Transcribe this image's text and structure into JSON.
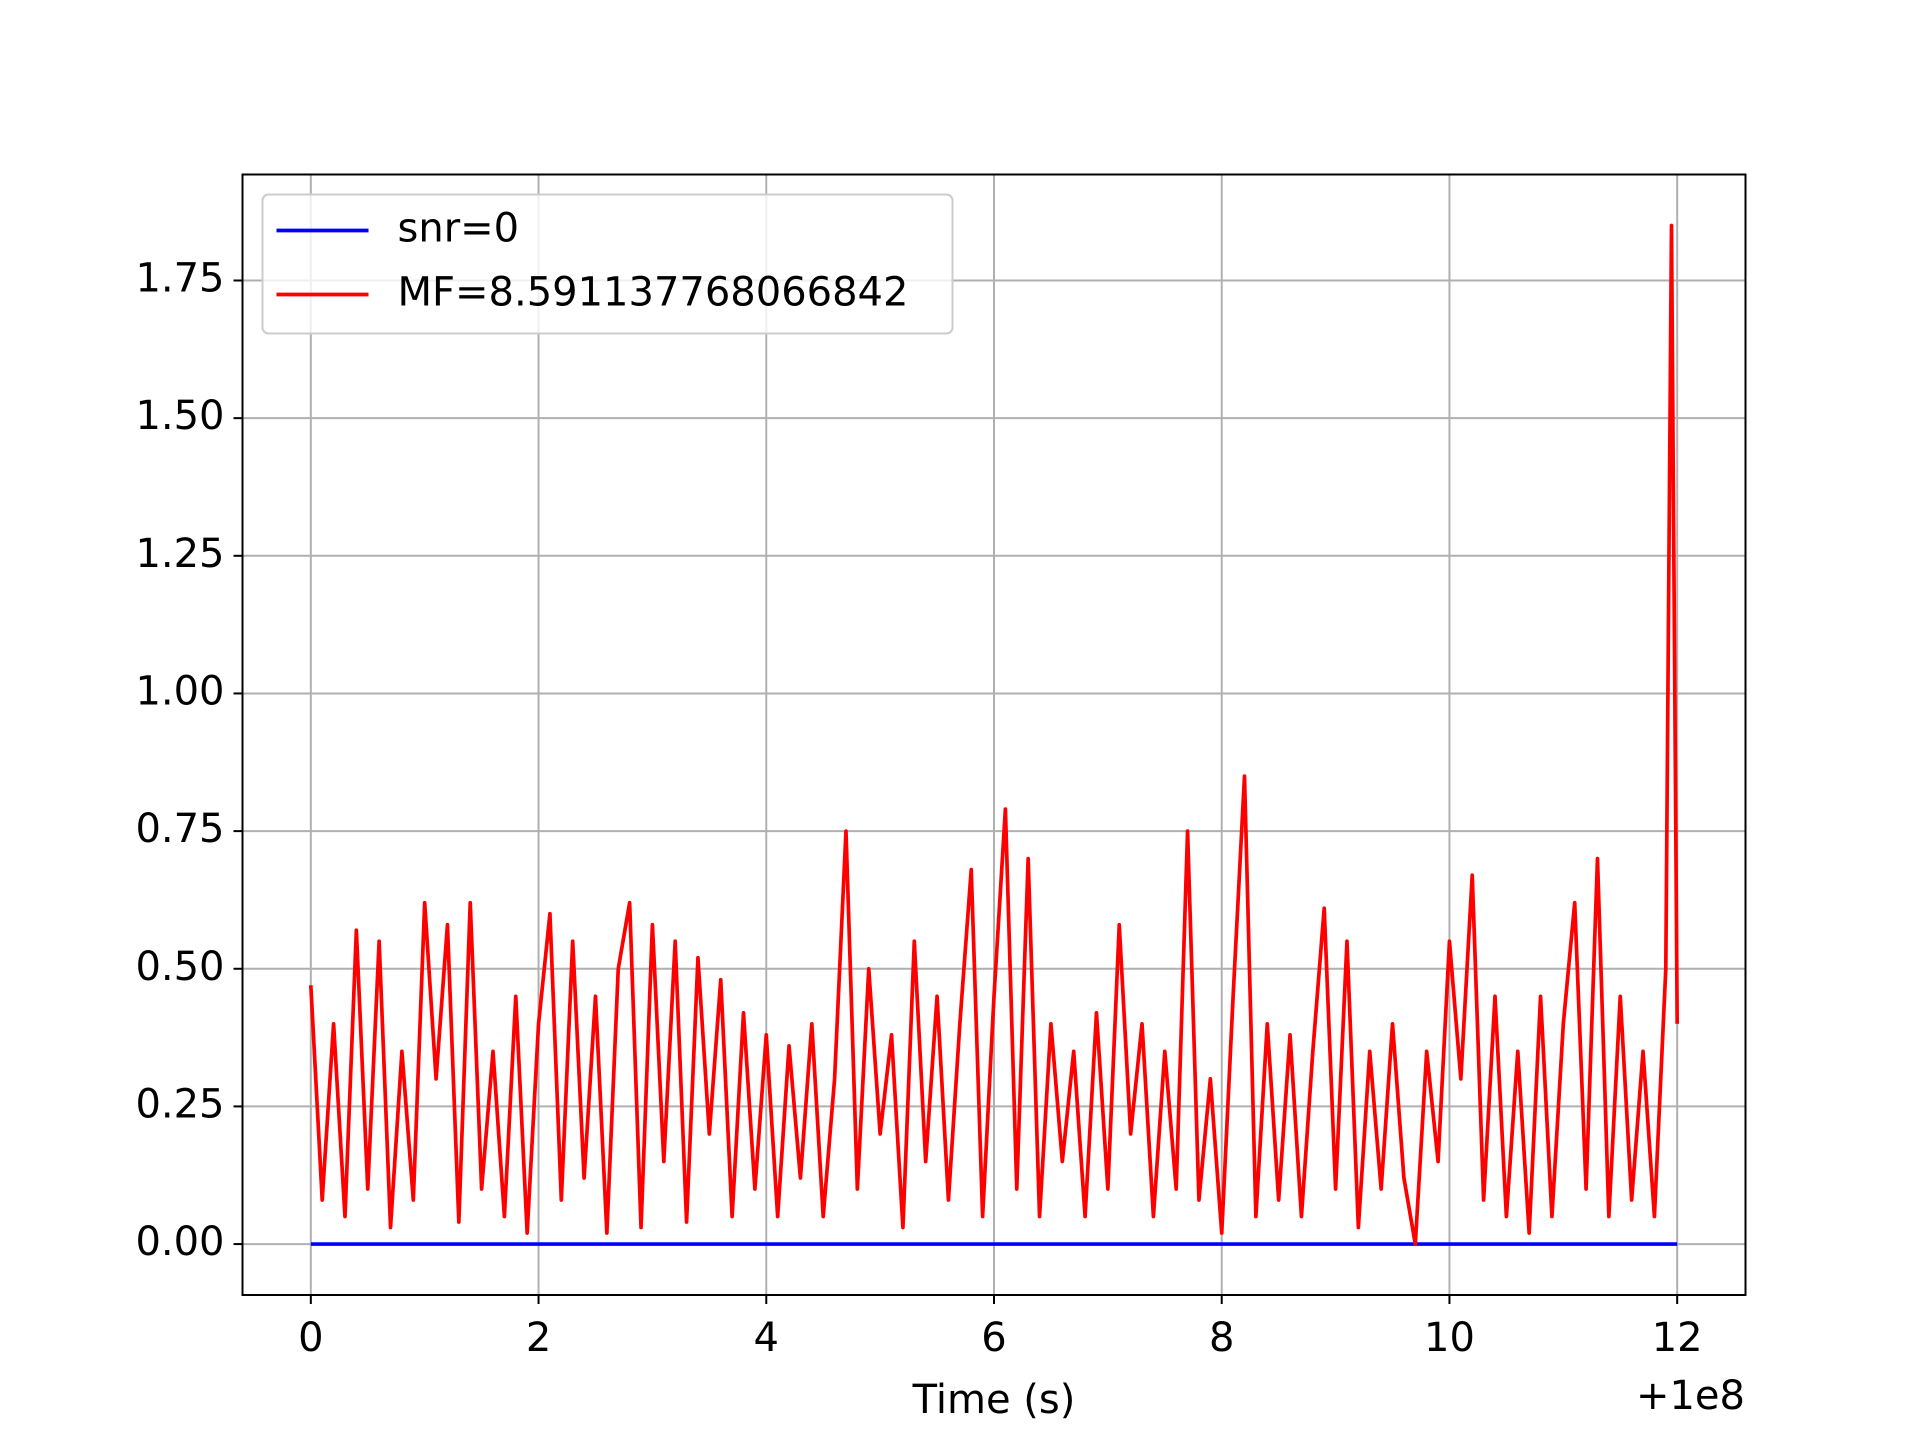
{
  "chart_data": {
    "type": "line",
    "xlabel": "Time (s)",
    "x_offset_text": "+1e8",
    "xlim": [
      -0.6,
      12.6
    ],
    "xticks": [
      0,
      2,
      4,
      6,
      8,
      10,
      12
    ],
    "ylim": [
      -0.0925,
      1.9425
    ],
    "yticks": [
      {
        "value": 0,
        "label": "0.00"
      },
      {
        "value": 0.25,
        "label": "0.25"
      },
      {
        "value": 0.5,
        "label": "0.50"
      },
      {
        "value": 0.75,
        "label": "0.75"
      },
      {
        "value": 1,
        "label": "1.00"
      },
      {
        "value": 1.25,
        "label": "1.25"
      },
      {
        "value": 1.5,
        "label": "1.50"
      },
      {
        "value": 1.75,
        "label": "1.75"
      }
    ],
    "grid": true,
    "legend": "upper left",
    "series": [
      {
        "name": "snr=0",
        "color": "#0000ff",
        "x": [
          0,
          12
        ],
        "values": [
          0,
          0
        ]
      },
      {
        "name": "MF=8.591137768066842",
        "color": "#ff0000",
        "x": [
          0,
          0.1,
          0.2,
          0.3,
          0.4,
          0.5,
          0.6,
          0.7,
          0.8,
          0.9,
          1,
          1.1,
          1.2,
          1.3,
          1.4,
          1.5,
          1.6,
          1.7,
          1.8,
          1.9,
          2,
          2.1,
          2.2,
          2.3,
          2.4,
          2.5,
          2.6,
          2.7,
          2.8,
          2.9,
          3,
          3.1,
          3.2,
          3.3,
          3.4,
          3.5,
          3.6,
          3.7,
          3.8,
          3.9,
          4,
          4.1,
          4.2,
          4.3,
          4.4,
          4.5,
          4.6,
          4.7,
          4.8,
          4.9,
          5,
          5.1,
          5.2,
          5.3,
          5.4,
          5.5,
          5.6,
          5.7,
          5.8,
          5.9,
          6,
          6.1,
          6.2,
          6.3,
          6.4,
          6.5,
          6.6,
          6.7,
          6.8,
          6.9,
          7,
          7.1,
          7.2,
          7.3,
          7.4,
          7.5,
          7.6,
          7.7,
          7.8,
          7.9,
          8,
          8.1,
          8.2,
          8.3,
          8.4,
          8.5,
          8.6,
          8.7,
          8.8,
          8.9,
          9,
          9.1,
          9.2,
          9.3,
          9.4,
          9.5,
          9.6,
          9.7,
          9.8,
          9.9,
          10,
          10.1,
          10.2,
          10.3,
          10.4,
          10.5,
          10.6,
          10.7,
          10.8,
          10.9,
          11,
          11.1,
          11.2,
          11.3,
          11.4,
          11.5,
          11.6,
          11.7,
          11.8,
          11.9,
          11.95,
          12
        ],
        "values": [
          0.47,
          0.08,
          0.4,
          0.05,
          0.57,
          0.1,
          0.55,
          0.03,
          0.35,
          0.08,
          0.62,
          0.3,
          0.58,
          0.04,
          0.62,
          0.1,
          0.35,
          0.05,
          0.45,
          0.02,
          0.4,
          0.6,
          0.08,
          0.55,
          0.12,
          0.45,
          0.02,
          0.5,
          0.62,
          0.03,
          0.58,
          0.15,
          0.55,
          0.04,
          0.52,
          0.2,
          0.48,
          0.05,
          0.42,
          0.1,
          0.38,
          0.05,
          0.36,
          0.12,
          0.4,
          0.05,
          0.3,
          0.75,
          0.1,
          0.5,
          0.2,
          0.38,
          0.03,
          0.55,
          0.15,
          0.45,
          0.08,
          0.4,
          0.68,
          0.05,
          0.45,
          0.79,
          0.1,
          0.7,
          0.05,
          0.4,
          0.15,
          0.35,
          0.05,
          0.42,
          0.1,
          0.58,
          0.2,
          0.4,
          0.05,
          0.35,
          0.1,
          0.75,
          0.08,
          0.3,
          0.02,
          0.45,
          0.85,
          0.05,
          0.4,
          0.08,
          0.38,
          0.05,
          0.35,
          0.61,
          0.1,
          0.55,
          0.03,
          0.35,
          0.1,
          0.4,
          0.12,
          0,
          0.35,
          0.15,
          0.55,
          0.3,
          0.67,
          0.08,
          0.45,
          0.05,
          0.35,
          0.02,
          0.45,
          0.05,
          0.4,
          0.62,
          0.1,
          0.7,
          0.05,
          0.45,
          0.08,
          0.35,
          0.05,
          0.5,
          1.85,
          0.4
        ]
      }
    ]
  }
}
